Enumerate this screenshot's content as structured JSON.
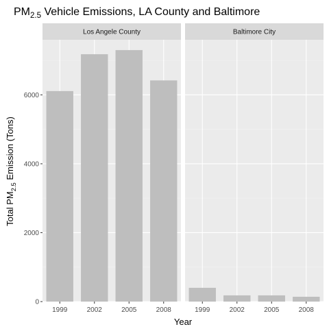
{
  "chart_data": {
    "type": "bar",
    "title": {
      "base": "PM",
      "sub": "2.5",
      "rest": " Vehicle Emissions, LA County and Baltimore"
    },
    "xlabel": "Year",
    "ylabel": {
      "base": "Total PM",
      "sub": "2.5",
      "rest": " Emission (Tons)"
    },
    "categories": [
      "1999",
      "2002",
      "2005",
      "2008"
    ],
    "ylim": [
      0,
      7600
    ],
    "yticks": [
      0,
      2000,
      4000,
      6000
    ],
    "grid": true,
    "facets": [
      {
        "label": "Los Angele County",
        "values": [
          6110,
          7180,
          7300,
          6420
        ]
      },
      {
        "label": "Baltimore City",
        "values": [
          400,
          180,
          180,
          140
        ]
      }
    ],
    "colors": {
      "bar": "#bebebe",
      "panel": "#ebebeb",
      "strip": "#d9d9d9",
      "grid_major": "#ffffff",
      "grid_minor": "#f2f2f2"
    }
  }
}
